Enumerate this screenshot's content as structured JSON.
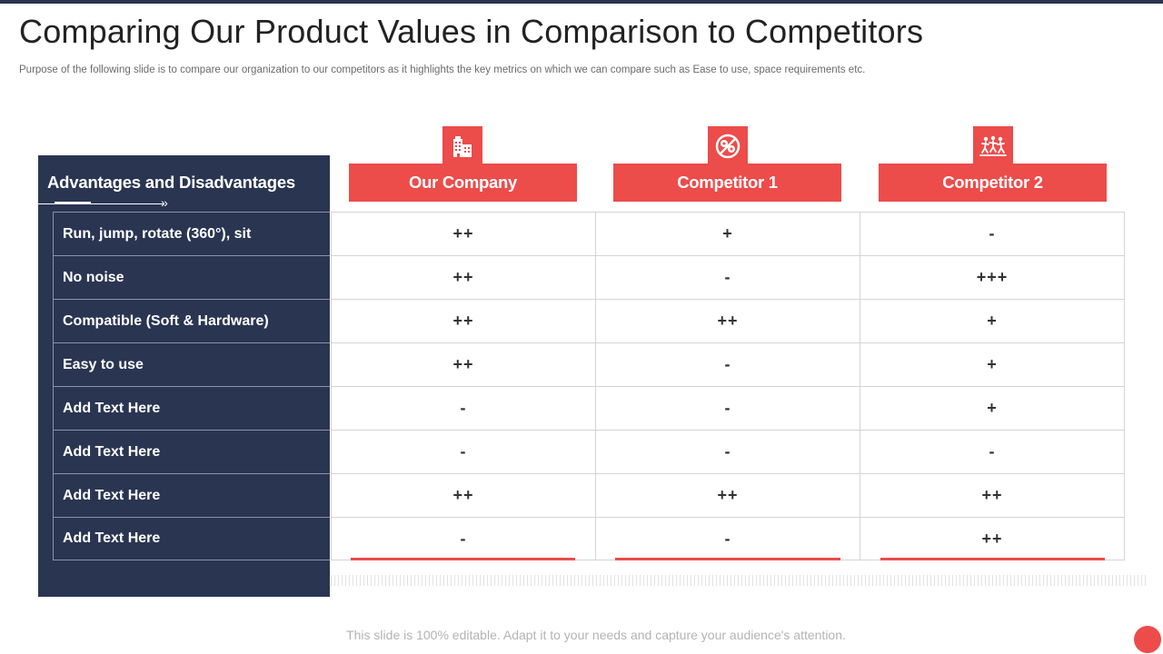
{
  "slide": {
    "title": "Comparing Our Product Values in Comparison to Competitors",
    "subtitle": "Purpose of the following slide is to compare our organization to our competitors as it highlights the key metrics on which we can compare such as Ease to use, space requirements etc.",
    "footer": "This slide is 100% editable. Adapt it to your needs and capture your audience's attention."
  },
  "table": {
    "left_header": "Advantages and Disadvantages",
    "columns": [
      {
        "label": "Our Company",
        "icon": "building-icon"
      },
      {
        "label": "Competitor 1",
        "icon": "no-gears-icon"
      },
      {
        "label": "Competitor 2",
        "icon": "runners-icon"
      }
    ],
    "rows": [
      {
        "label": "Run, jump, rotate (360°), sit",
        "values": [
          "++",
          "+",
          "-"
        ]
      },
      {
        "label": "No noise",
        "values": [
          "++",
          "-",
          "+++"
        ]
      },
      {
        "label": "Compatible (Soft & Hardware)",
        "values": [
          "++",
          "++",
          "+"
        ]
      },
      {
        "label": "Easy to use",
        "values": [
          "++",
          "-",
          "+"
        ]
      },
      {
        "label": "Add Text Here",
        "values": [
          "-",
          "-",
          "+"
        ]
      },
      {
        "label": "Add Text Here",
        "values": [
          "-",
          "-",
          "-"
        ]
      },
      {
        "label": "Add Text Here",
        "values": [
          "++",
          "++",
          "++"
        ]
      },
      {
        "label": "Add Text Here",
        "values": [
          "-",
          "-",
          "++"
        ]
      }
    ]
  },
  "colors": {
    "accent": "#ec4c4a",
    "panel": "#2a3552"
  }
}
